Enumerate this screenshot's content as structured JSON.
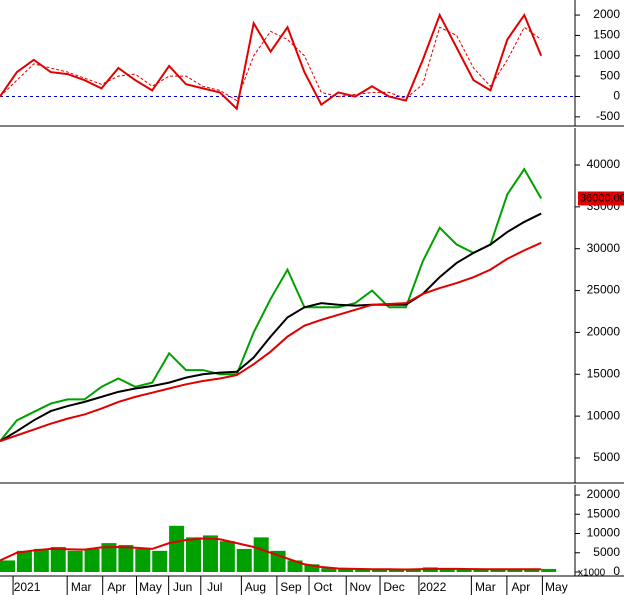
{
  "chart_data": [
    {
      "type": "line",
      "x": [
        0,
        10,
        20,
        30,
        40,
        50,
        60,
        70,
        80,
        90,
        100,
        110,
        120,
        130,
        140,
        150,
        160,
        170,
        180,
        190,
        200,
        210,
        220,
        230,
        240,
        250,
        260,
        270,
        280,
        290,
        300,
        310,
        320
      ],
      "xlim": [
        0,
        340
      ],
      "ylim": [
        -700,
        2370
      ],
      "yticks": [
        -500,
        0,
        500,
        1000,
        1500,
        2000
      ],
      "reference_line": {
        "value": 0,
        "color": "#0000cc"
      },
      "series": [
        {
          "color": "#e00000",
          "style": "solid",
          "values": [
            0,
            600,
            900,
            600,
            550,
            400,
            200,
            700,
            400,
            150,
            750,
            300,
            200,
            100,
            -300,
            1800,
            1100,
            1700,
            600,
            -200,
            100,
            0,
            250,
            0,
            -100,
            900,
            2000,
            1200,
            400,
            150,
            1400,
            2000,
            1000
          ]
        },
        {
          "color": "#e00000",
          "style": "dashed",
          "values": [
            0,
            400,
            800,
            700,
            600,
            450,
            300,
            500,
            550,
            250,
            500,
            500,
            250,
            150,
            -100,
            1000,
            1600,
            1400,
            1000,
            100,
            0,
            50,
            100,
            100,
            -50,
            300,
            1700,
            1500,
            700,
            250,
            900,
            1700,
            1400
          ]
        }
      ]
    },
    {
      "type": "line",
      "x": [
        0,
        10,
        20,
        30,
        40,
        50,
        60,
        70,
        80,
        90,
        100,
        110,
        120,
        130,
        140,
        150,
        160,
        170,
        180,
        190,
        200,
        210,
        220,
        230,
        240,
        250,
        260,
        270,
        280,
        290,
        300,
        310,
        320
      ],
      "xlim": [
        0,
        340
      ],
      "ylim": [
        2130,
        44420
      ],
      "yticks": [
        5000,
        10000,
        15000,
        20000,
        25000,
        30000,
        35000,
        40000
      ],
      "last_label": {
        "value": 36000,
        "label": "36000.00"
      },
      "series": [
        {
          "color": "#00a000",
          "style": "solid",
          "values": [
            7000,
            9500,
            10500,
            11500,
            12000,
            12000,
            13500,
            14500,
            13500,
            14000,
            17500,
            15500,
            15500,
            15000,
            15000,
            20000,
            24000,
            27500,
            23000,
            23000,
            23000,
            23500,
            25000,
            23000,
            23000,
            28500,
            32500,
            30500,
            29500,
            30500,
            36500,
            39500,
            36000
          ]
        },
        {
          "color": "#000000",
          "style": "solid",
          "values": [
            7000,
            8200,
            9500,
            10600,
            11200,
            11700,
            12300,
            12900,
            13300,
            13600,
            14000,
            14600,
            15000,
            15200,
            15300,
            17000,
            19500,
            21800,
            23000,
            23500,
            23300,
            23200,
            23300,
            23300,
            23300,
            24600,
            26600,
            28300,
            29500,
            30500,
            32000,
            33200,
            34200
          ]
        },
        {
          "color": "#e00000",
          "style": "solid",
          "values": [
            7000,
            7700,
            8400,
            9100,
            9700,
            10200,
            10900,
            11700,
            12300,
            12800,
            13300,
            13800,
            14200,
            14500,
            14900,
            16200,
            17700,
            19500,
            20800,
            21500,
            22100,
            22700,
            23300,
            23400,
            23500,
            24600,
            25300,
            25900,
            26600,
            27500,
            28800,
            29800,
            30700
          ]
        }
      ]
    },
    {
      "type": "bar",
      "x": [
        0,
        10,
        20,
        30,
        40,
        50,
        60,
        70,
        80,
        90,
        100,
        110,
        120,
        130,
        140,
        150,
        160,
        170,
        180,
        190,
        200,
        210,
        220,
        230,
        240,
        250,
        260,
        270,
        280,
        290,
        300,
        310,
        320
      ],
      "xlim": [
        0,
        340
      ],
      "ylim": [
        -780,
        22600
      ],
      "yticks": [
        0,
        5000,
        10000,
        15000,
        20000
      ],
      "unit_label": "x1000",
      "xticks": [
        {
          "value": 16,
          "label": "2021"
        },
        {
          "value": 48,
          "label": "Mar"
        },
        {
          "value": 69,
          "label": "Apr"
        },
        {
          "value": 89,
          "label": "May"
        },
        {
          "value": 108,
          "label": "Jun"
        },
        {
          "value": 127,
          "label": "Jul"
        },
        {
          "value": 151,
          "label": "Aug"
        },
        {
          "value": 172,
          "label": "Sep"
        },
        {
          "value": 191,
          "label": "Oct"
        },
        {
          "value": 213,
          "label": "Nov"
        },
        {
          "value": 233,
          "label": "Dec"
        },
        {
          "value": 256,
          "label": "2022"
        },
        {
          "value": 287,
          "label": "Mar"
        },
        {
          "value": 308,
          "label": "Apr"
        },
        {
          "value": 329,
          "label": "May"
        }
      ],
      "series": [
        {
          "type": "bar",
          "color": "#00a000",
          "values": [
            3000,
            5500,
            6000,
            6500,
            5500,
            6000,
            7500,
            7000,
            6000,
            5500,
            12000,
            9000,
            9500,
            8000,
            6000,
            9000,
            5500,
            3000,
            2000,
            1000,
            800,
            700,
            800,
            700,
            600,
            1200,
            900,
            800,
            700,
            600,
            800,
            700,
            800
          ]
        },
        {
          "type": "line",
          "color": "#e00000",
          "style": "solid",
          "values": [
            3000,
            5000,
            5600,
            6000,
            5900,
            5800,
            6400,
            6500,
            6300,
            6000,
            7500,
            8300,
            8700,
            8500,
            7500,
            6500,
            5000,
            3500,
            2000,
            1300,
            900,
            800,
            700,
            700,
            650,
            750,
            800,
            800,
            750,
            700,
            700,
            700,
            700
          ]
        }
      ]
    }
  ]
}
